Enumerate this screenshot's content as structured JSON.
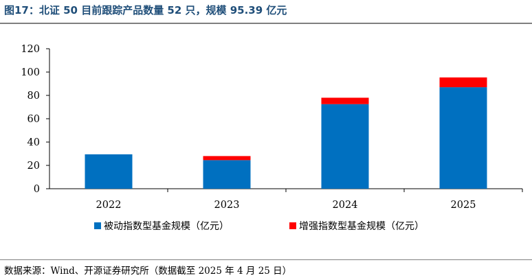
{
  "title": "图17：北证 50 目前跟踪产品数量 52 只，规模 95.39 亿元",
  "source": "数据来源：Wind、开源证券研究所（数据截至 2025 年 4 月 25 日）",
  "colors": {
    "passive": "#0070c0",
    "enhanced": "#ff0000",
    "title": "#1f4e79"
  },
  "chart_data": {
    "type": "bar",
    "stacked": true,
    "categories": [
      "2022",
      "2023",
      "2024",
      "2025"
    ],
    "series": [
      {
        "name": "被动指数型基金规模（亿元）",
        "values": [
          29.5,
          24.5,
          72.5,
          87
        ],
        "color": "#0070c0"
      },
      {
        "name": "增强指数型基金规模（亿元）",
        "values": [
          0,
          3.5,
          5.5,
          8.4
        ],
        "color": "#ff0000"
      }
    ],
    "ylim": [
      0,
      120
    ],
    "yticks": [
      0,
      20,
      40,
      60,
      80,
      100,
      120
    ],
    "grid": false,
    "legend": "bottom"
  }
}
